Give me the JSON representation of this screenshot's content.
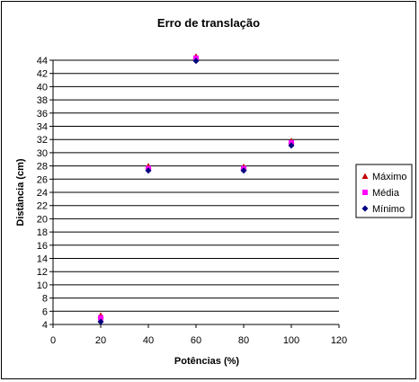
{
  "chart_data": {
    "type": "scatter",
    "title": "Erro de translação",
    "xlabel": "Potências (%)",
    "ylabel": "Distância (cm)",
    "xlim": [
      0,
      120
    ],
    "ylim": [
      4,
      44
    ],
    "xticks": [
      0,
      20,
      40,
      60,
      80,
      100,
      120
    ],
    "yticks": [
      4,
      6,
      8,
      10,
      12,
      14,
      16,
      18,
      20,
      22,
      24,
      26,
      28,
      30,
      32,
      34,
      36,
      38,
      40,
      42,
      44
    ],
    "grid": "horizontal",
    "legend_position": "right",
    "series": [
      {
        "name": "Máximo",
        "marker": "triangle",
        "color": "#c00000",
        "x": [
          20,
          40,
          60,
          80,
          100
        ],
        "y": [
          5.4,
          28.0,
          44.6,
          27.9,
          31.8
        ]
      },
      {
        "name": "Média",
        "marker": "square",
        "color": "#ff00ff",
        "x": [
          20,
          40,
          60,
          80,
          100
        ],
        "y": [
          5.0,
          27.6,
          44.3,
          27.6,
          31.5
        ]
      },
      {
        "name": "Mínimo",
        "marker": "diamond",
        "color": "#000080",
        "x": [
          20,
          40,
          60,
          80,
          100
        ],
        "y": [
          4.4,
          27.3,
          43.9,
          27.3,
          31.1
        ]
      }
    ]
  }
}
